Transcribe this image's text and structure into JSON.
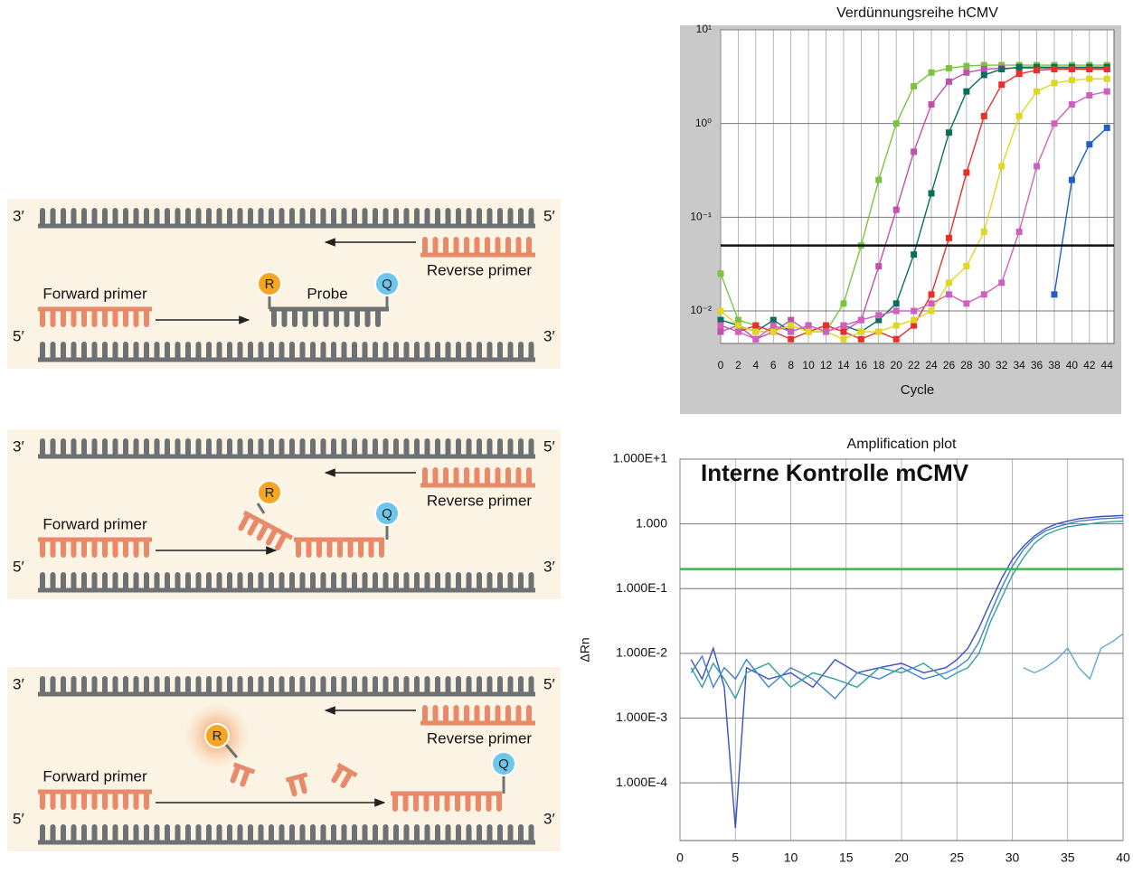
{
  "diagram": {
    "panels": [
      {
        "top_left": "3′",
        "top_right": "5′",
        "reverse_primer": "Reverse primer",
        "forward_primer": "Forward primer",
        "probe": "Probe",
        "reporter": "R",
        "quencher": "Q",
        "bottom_left": "5′",
        "bottom_right": "3′"
      },
      {
        "top_left": "3′",
        "top_right": "5′",
        "reverse_primer": "Reverse primer",
        "forward_primer": "Forward primer",
        "reporter": "R",
        "quencher": "Q",
        "bottom_left": "5′",
        "bottom_right": "3′"
      },
      {
        "top_left": "3′",
        "top_right": "5′",
        "reverse_primer": "Reverse primer",
        "forward_primer": "Forward primer",
        "reporter": "R",
        "quencher": "Q",
        "bottom_left": "5′",
        "bottom_right": "3′"
      }
    ]
  },
  "chart_data": [
    {
      "type": "line",
      "title": "Verdünnungsreihe hCMV",
      "x_label": "Cycle",
      "log_y": true,
      "grid": true,
      "markers": true,
      "x": [
        0,
        2,
        4,
        6,
        8,
        10,
        12,
        14,
        16,
        18,
        20,
        22,
        24,
        26,
        28,
        30,
        32,
        34,
        36,
        38,
        40,
        42,
        44
      ],
      "xlim": [
        0,
        44.8
      ],
      "xticks": [
        0,
        2,
        4,
        6,
        8,
        10,
        12,
        14,
        16,
        18,
        20,
        22,
        24,
        26,
        28,
        30,
        32,
        34,
        36,
        38,
        40,
        42,
        44
      ],
      "ylim": [
        0.0045,
        10
      ],
      "yticks": [
        {
          "value": 0.01,
          "label": "10⁻²"
        },
        {
          "value": 0.1,
          "label": "10⁻¹"
        },
        {
          "value": 1,
          "label": "10⁰"
        },
        {
          "value": 10,
          "label": "10¹"
        }
      ],
      "threshold": 0.05,
      "threshold_color": "#111111",
      "series": [
        {
          "color": "#7cc242",
          "values": [
            0.025,
            0.008,
            0.007,
            0.006,
            0.007,
            0.006,
            0.006,
            0.012,
            0.05,
            0.25,
            1.0,
            2.5,
            3.5,
            3.9,
            4.1,
            4.2,
            4.2,
            4.2,
            4.2,
            4.2,
            4.2,
            4.2,
            4.2
          ]
        },
        {
          "color": "#c050b0",
          "values": [
            0.006,
            0.007,
            0.005,
            0.006,
            0.008,
            0.006,
            0.007,
            0.006,
            0.008,
            0.03,
            0.12,
            0.5,
            1.6,
            2.8,
            3.5,
            3.8,
            3.9,
            3.9,
            3.9,
            3.9,
            3.9,
            3.9,
            3.9
          ]
        },
        {
          "color": "#0a6e5a",
          "values": [
            0.008,
            0.007,
            0.006,
            0.008,
            0.006,
            0.007,
            0.006,
            0.007,
            0.006,
            0.008,
            0.012,
            0.04,
            0.18,
            0.8,
            2.2,
            3.3,
            3.8,
            4.0,
            4.0,
            4.0,
            4.0,
            4.0,
            4.0
          ]
        },
        {
          "color": "#e8302a",
          "values": [
            0.007,
            0.006,
            0.007,
            0.006,
            0.005,
            0.006,
            0.007,
            0.006,
            0.005,
            0.006,
            0.005,
            0.007,
            0.015,
            0.06,
            0.3,
            1.2,
            2.6,
            3.4,
            3.7,
            3.8,
            3.8,
            3.8,
            3.8
          ]
        },
        {
          "color": "#e0d820",
          "values": [
            0.01,
            0.007,
            0.006,
            0.006,
            0.007,
            0.006,
            0.006,
            0.005,
            0.006,
            0.006,
            0.007,
            0.008,
            0.01,
            0.02,
            0.03,
            0.07,
            0.35,
            1.2,
            2.2,
            2.7,
            2.9,
            3.0,
            3.0
          ]
        },
        {
          "color": "#d060c0",
          "values": [
            0.007,
            0.006,
            0.005,
            0.007,
            0.006,
            0.007,
            0.006,
            0.007,
            0.008,
            0.009,
            0.01,
            0.01,
            0.012,
            0.015,
            0.012,
            0.015,
            0.02,
            0.07,
            0.35,
            1.0,
            1.6,
            2.0,
            2.2
          ]
        },
        {
          "color": "#2060c0",
          "values": [
            null,
            null,
            null,
            null,
            null,
            null,
            null,
            null,
            null,
            null,
            null,
            null,
            null,
            null,
            null,
            null,
            null,
            null,
            null,
            0.015,
            0.25,
            0.6,
            0.9
          ]
        }
      ]
    },
    {
      "type": "line",
      "title": "Amplification plot",
      "annotation": "Interne Kontrolle mCMV",
      "y_label": "ΔRn",
      "log_y": true,
      "grid": true,
      "markers": false,
      "x": [
        1,
        2,
        3,
        4,
        5,
        6,
        8,
        10,
        12,
        14,
        16,
        18,
        20,
        22,
        24,
        25,
        26,
        27,
        28,
        29,
        30,
        31,
        32,
        33,
        34,
        35,
        36,
        37,
        38,
        39,
        40
      ],
      "xlim": [
        0,
        40
      ],
      "xticks": [
        0,
        5,
        10,
        15,
        20,
        25,
        30,
        35,
        40
      ],
      "ylim": [
        1.28e-05,
        10
      ],
      "yticks": [
        {
          "value": 0.0001,
          "label": "1.000E-4"
        },
        {
          "value": 0.001,
          "label": "1.000E-3"
        },
        {
          "value": 0.01,
          "label": "1.000E-2"
        },
        {
          "value": 0.1,
          "label": "1.000E-1"
        },
        {
          "value": 1,
          "label": "1.000"
        },
        {
          "value": 10,
          "label": "1.000E+1"
        }
      ],
      "threshold": 0.2,
      "threshold_color": "#3cb44b",
      "series": [
        {
          "color": "#3a50c0",
          "values": [
            0.008,
            0.004,
            0.012,
            0.003,
            2e-05,
            0.006,
            0.004,
            0.005,
            0.003,
            0.008,
            0.005,
            0.006,
            0.007,
            0.005,
            0.006,
            0.008,
            0.012,
            0.025,
            0.06,
            0.14,
            0.28,
            0.45,
            0.65,
            0.85,
            1.0,
            1.1,
            1.2,
            1.25,
            1.3,
            1.32,
            1.35
          ]
        },
        {
          "color": "#4080d0",
          "values": [
            0.005,
            0.009,
            0.003,
            0.006,
            0.004,
            0.008,
            0.003,
            0.006,
            0.004,
            0.002,
            0.005,
            0.004,
            0.006,
            0.004,
            0.005,
            0.006,
            0.008,
            0.015,
            0.04,
            0.1,
            0.22,
            0.4,
            0.6,
            0.78,
            0.9,
            1.0,
            1.1,
            1.15,
            1.2,
            1.22,
            1.25
          ]
        },
        {
          "color": "#30a0a0",
          "values": [
            0.006,
            0.003,
            0.007,
            0.004,
            0.002,
            0.005,
            0.007,
            0.003,
            0.005,
            0.004,
            0.003,
            0.006,
            0.005,
            0.007,
            0.004,
            0.005,
            0.006,
            0.01,
            0.03,
            0.07,
            0.16,
            0.3,
            0.5,
            0.68,
            0.8,
            0.9,
            0.95,
            1.0,
            1.05,
            1.08,
            1.1
          ]
        },
        {
          "color": "#60a8d0",
          "values": [
            null,
            null,
            null,
            null,
            null,
            null,
            null,
            null,
            null,
            null,
            null,
            null,
            null,
            null,
            null,
            null,
            null,
            null,
            null,
            null,
            null,
            0.006,
            0.005,
            0.006,
            0.008,
            0.012,
            0.006,
            0.004,
            0.012,
            0.015,
            0.02
          ]
        }
      ]
    }
  ]
}
